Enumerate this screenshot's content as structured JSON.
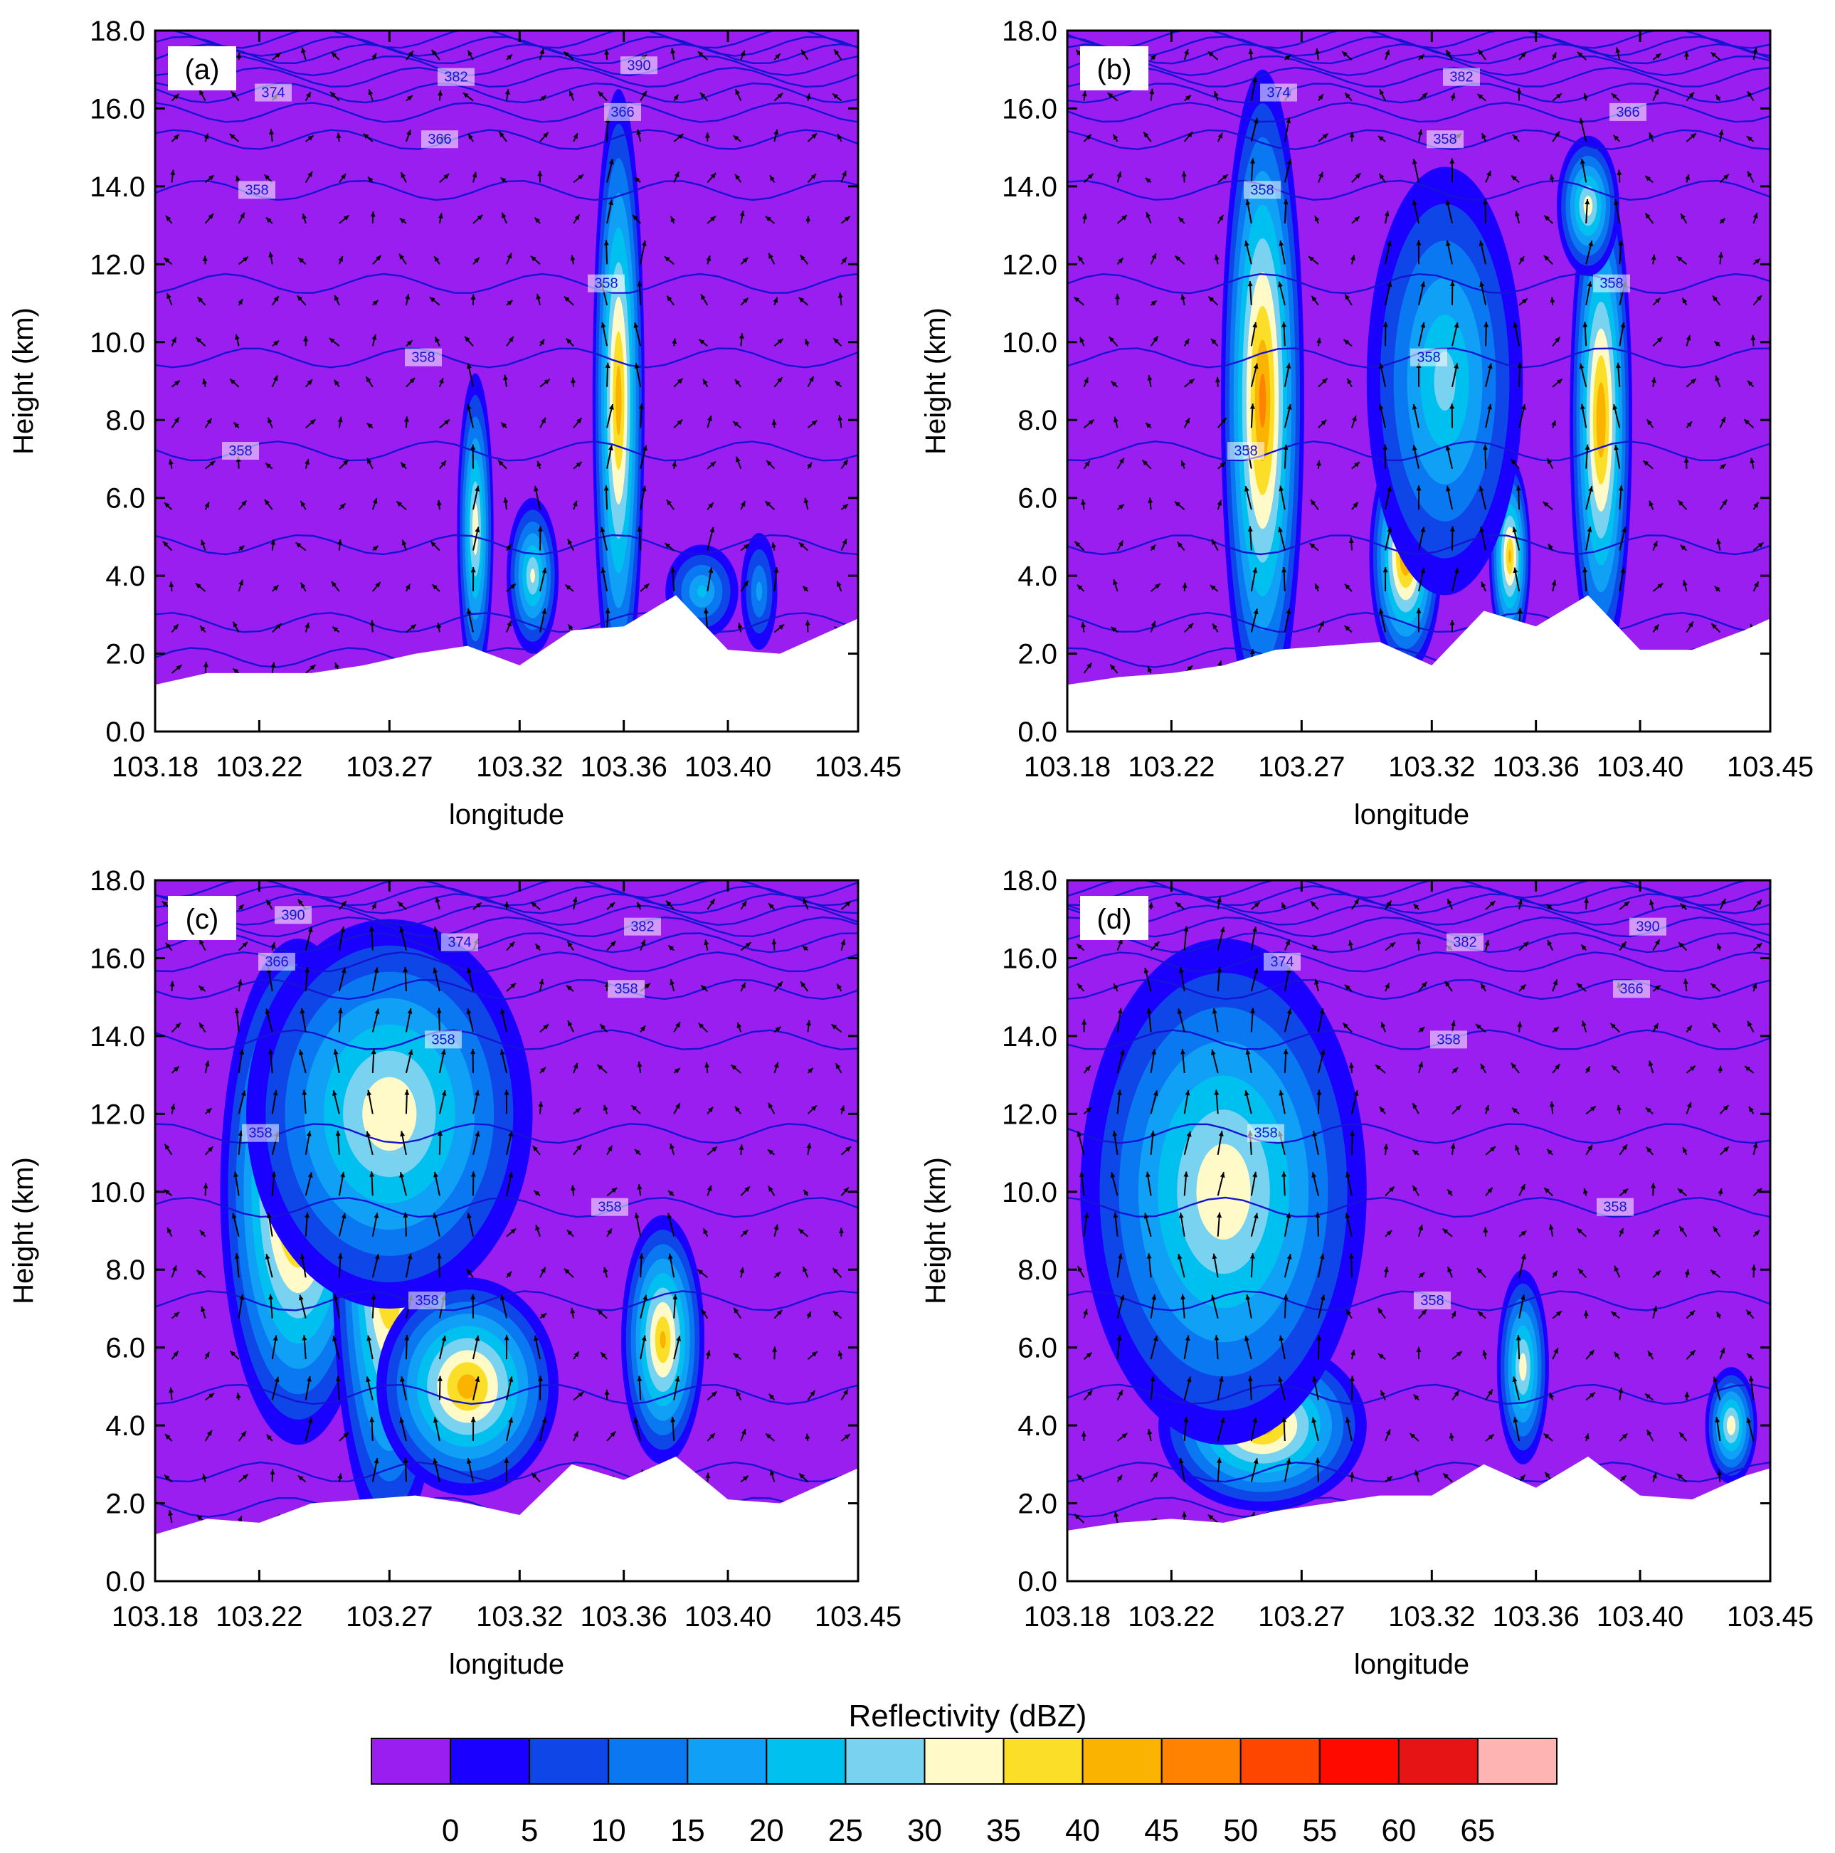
{
  "chart_data": [
    {
      "type": "heatmap",
      "panel_label": "(a)",
      "ylabel": "Height (km)",
      "xlabel": "longitude",
      "xlim": [
        103.18,
        103.45
      ],
      "ylim": [
        0.0,
        18.0
      ],
      "x_ticks": [
        "103.18",
        "103.22",
        "103.27",
        "103.32",
        "103.36",
        "103.40",
        "103.45"
      ],
      "y_ticks": [
        "0.0",
        "2.0",
        "4.0",
        "6.0",
        "8.0",
        "10.0",
        "12.0",
        "14.0",
        "16.0",
        "18.0"
      ],
      "contour_labels": [
        "358",
        "358",
        "358",
        "358",
        "366",
        "366",
        "374",
        "382",
        "390"
      ],
      "terrain": [
        [
          103.18,
          1.2
        ],
        [
          103.2,
          1.5
        ],
        [
          103.22,
          1.5
        ],
        [
          103.24,
          1.5
        ],
        [
          103.26,
          1.7
        ],
        [
          103.28,
          2.0
        ],
        [
          103.3,
          2.2
        ],
        [
          103.32,
          1.7
        ],
        [
          103.34,
          2.6
        ],
        [
          103.36,
          2.7
        ],
        [
          103.38,
          3.5
        ],
        [
          103.4,
          2.1
        ],
        [
          103.42,
          2.0
        ],
        [
          103.44,
          2.6
        ],
        [
          103.45,
          2.9
        ]
      ],
      "cells": [
        {
          "x": 103.358,
          "y": 8.5,
          "rx": 0.01,
          "ry": 8.0,
          "max_dbz": 42
        },
        {
          "x": 103.303,
          "y": 5.2,
          "rx": 0.007,
          "ry": 4.0,
          "max_dbz": 33
        },
        {
          "x": 103.325,
          "y": 4.0,
          "rx": 0.01,
          "ry": 2.0,
          "max_dbz": 30
        },
        {
          "x": 103.39,
          "y": 3.6,
          "rx": 0.014,
          "ry": 1.2,
          "max_dbz": 20
        },
        {
          "x": 103.412,
          "y": 3.6,
          "rx": 0.007,
          "ry": 1.5,
          "max_dbz": 15
        }
      ]
    },
    {
      "type": "heatmap",
      "panel_label": "(b)",
      "ylabel": "Height (km)",
      "xlabel": "longitude",
      "xlim": [
        103.18,
        103.45
      ],
      "ylim": [
        0.0,
        18.0
      ],
      "x_ticks": [
        "103.18",
        "103.22",
        "103.27",
        "103.32",
        "103.36",
        "103.40",
        "103.45"
      ],
      "y_ticks": [
        "0.0",
        "2.0",
        "4.0",
        "6.0",
        "8.0",
        "10.0",
        "12.0",
        "14.0",
        "16.0",
        "18.0"
      ],
      "contour_labels": [
        "358",
        "358",
        "358",
        "358",
        "358",
        "366",
        "374",
        "382"
      ],
      "terrain": [
        [
          103.18,
          1.2
        ],
        [
          103.2,
          1.4
        ],
        [
          103.22,
          1.5
        ],
        [
          103.24,
          1.7
        ],
        [
          103.26,
          2.1
        ],
        [
          103.28,
          2.2
        ],
        [
          103.3,
          2.3
        ],
        [
          103.32,
          1.7
        ],
        [
          103.34,
          3.1
        ],
        [
          103.36,
          2.7
        ],
        [
          103.38,
          3.5
        ],
        [
          103.4,
          2.1
        ],
        [
          103.42,
          2.1
        ],
        [
          103.44,
          2.6
        ],
        [
          103.45,
          2.9
        ]
      ],
      "cells": [
        {
          "x": 103.255,
          "y": 8.5,
          "rx": 0.016,
          "ry": 8.5,
          "max_dbz": 46
        },
        {
          "x": 103.31,
          "y": 4.5,
          "rx": 0.014,
          "ry": 3.0,
          "max_dbz": 45
        },
        {
          "x": 103.35,
          "y": 4.5,
          "rx": 0.008,
          "ry": 2.5,
          "max_dbz": 40
        },
        {
          "x": 103.385,
          "y": 8.0,
          "rx": 0.012,
          "ry": 6.5,
          "max_dbz": 44
        },
        {
          "x": 103.38,
          "y": 13.5,
          "rx": 0.012,
          "ry": 1.8,
          "max_dbz": 32
        },
        {
          "x": 103.325,
          "y": 9.0,
          "rx": 0.03,
          "ry": 5.5,
          "max_dbz": 26
        }
      ]
    },
    {
      "type": "heatmap",
      "panel_label": "(c)",
      "ylabel": "Height (km)",
      "xlabel": "longitude",
      "xlim": [
        103.18,
        103.45
      ],
      "ylim": [
        0.0,
        18.0
      ],
      "x_ticks": [
        "103.18",
        "103.22",
        "103.27",
        "103.32",
        "103.36",
        "103.40",
        "103.45"
      ],
      "y_ticks": [
        "0.0",
        "2.0",
        "4.0",
        "6.0",
        "8.0",
        "10.0",
        "12.0",
        "14.0",
        "16.0",
        "18.0"
      ],
      "contour_labels": [
        "358",
        "358",
        "358",
        "358",
        "358",
        "366",
        "374",
        "382",
        "390"
      ],
      "terrain": [
        [
          103.18,
          1.2
        ],
        [
          103.2,
          1.6
        ],
        [
          103.22,
          1.5
        ],
        [
          103.24,
          2.0
        ],
        [
          103.26,
          2.1
        ],
        [
          103.28,
          2.2
        ],
        [
          103.3,
          2.0
        ],
        [
          103.32,
          1.7
        ],
        [
          103.34,
          3.0
        ],
        [
          103.36,
          2.6
        ],
        [
          103.38,
          3.2
        ],
        [
          103.4,
          2.1
        ],
        [
          103.42,
          2.0
        ],
        [
          103.44,
          2.6
        ],
        [
          103.45,
          2.9
        ]
      ],
      "cells": [
        {
          "x": 103.235,
          "y": 10.0,
          "rx": 0.03,
          "ry": 6.5,
          "max_dbz": 47
        },
        {
          "x": 103.27,
          "y": 8.5,
          "rx": 0.022,
          "ry": 7.5,
          "max_dbz": 45
        },
        {
          "x": 103.3,
          "y": 5.0,
          "rx": 0.035,
          "ry": 2.8,
          "max_dbz": 42
        },
        {
          "x": 103.375,
          "y": 6.2,
          "rx": 0.016,
          "ry": 3.2,
          "max_dbz": 40
        },
        {
          "x": 103.27,
          "y": 12.0,
          "rx": 0.055,
          "ry": 5.0,
          "max_dbz": 34
        }
      ]
    },
    {
      "type": "heatmap",
      "panel_label": "(d)",
      "ylabel": "Height (km)",
      "xlabel": "longitude",
      "xlim": [
        103.18,
        103.45
      ],
      "ylim": [
        0.0,
        18.0
      ],
      "x_ticks": [
        "103.18",
        "103.22",
        "103.27",
        "103.32",
        "103.36",
        "103.40",
        "103.45"
      ],
      "y_ticks": [
        "0.0",
        "2.0",
        "4.0",
        "6.0",
        "8.0",
        "10.0",
        "12.0",
        "14.0",
        "16.0",
        "18.0"
      ],
      "contour_labels": [
        "358",
        "358",
        "358",
        "358",
        "366",
        "374",
        "382",
        "390"
      ],
      "terrain": [
        [
          103.18,
          1.3
        ],
        [
          103.2,
          1.5
        ],
        [
          103.22,
          1.6
        ],
        [
          103.24,
          1.5
        ],
        [
          103.26,
          1.8
        ],
        [
          103.28,
          2.0
        ],
        [
          103.3,
          2.2
        ],
        [
          103.32,
          2.2
        ],
        [
          103.34,
          3.0
        ],
        [
          103.36,
          2.4
        ],
        [
          103.38,
          3.2
        ],
        [
          103.4,
          2.2
        ],
        [
          103.42,
          2.1
        ],
        [
          103.44,
          2.7
        ],
        [
          103.45,
          2.9
        ]
      ],
      "cells": [
        {
          "x": 103.245,
          "y": 9.0,
          "rx": 0.03,
          "ry": 4.0,
          "max_dbz": 46
        },
        {
          "x": 103.255,
          "y": 4.0,
          "rx": 0.04,
          "ry": 2.2,
          "max_dbz": 42
        },
        {
          "x": 103.24,
          "y": 10.0,
          "rx": 0.055,
          "ry": 6.5,
          "max_dbz": 34
        },
        {
          "x": 103.355,
          "y": 5.5,
          "rx": 0.01,
          "ry": 2.5,
          "max_dbz": 32
        },
        {
          "x": 103.435,
          "y": 4.0,
          "rx": 0.01,
          "ry": 1.5,
          "max_dbz": 33
        }
      ]
    }
  ],
  "colorbar": {
    "title": "Reflectivity  (dBZ)",
    "labels": [
      "0",
      "5",
      "10",
      "15",
      "20",
      "25",
      "30",
      "35",
      "40",
      "45",
      "50",
      "55",
      "60",
      "65"
    ],
    "colors": [
      "#9b1ef0",
      "#1a00ff",
      "#0f46e8",
      "#0a78f0",
      "#10a0f5",
      "#00c0f0",
      "#78d2f0",
      "#fffac8",
      "#fade28",
      "#fab400",
      "#ff8200",
      "#ff4600",
      "#ff0a00",
      "#e61414",
      "#ffb4b4"
    ]
  }
}
